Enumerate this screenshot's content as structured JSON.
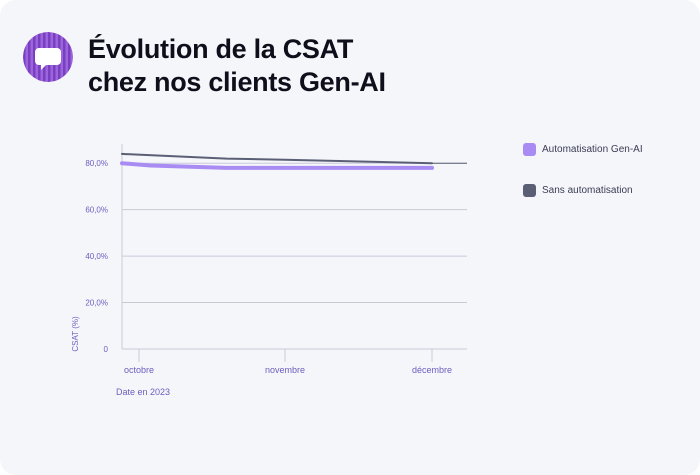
{
  "title_line1": "Évolution de la CSAT",
  "title_line2": "chez nos clients Gen-AI",
  "logo_icon": "chat-bubble-icon",
  "colors": {
    "background": "#f5f6fa",
    "accent": "#a98cf3",
    "dark": "#5a5f75",
    "axis_text": "#6a5fbf",
    "grid": "#c9c9d9"
  },
  "chart_data": {
    "type": "line",
    "title": "Évolution de la CSAT chez nos clients Gen-AI",
    "xlabel": "Date en 2023",
    "ylabel": "CSAT (%)",
    "categories": [
      "octobre",
      "novembre",
      "décembre"
    ],
    "ylim": [
      0,
      90
    ],
    "yticks": [
      0,
      20,
      40,
      60,
      80
    ],
    "ytick_labels": [
      "0",
      "20,0%",
      "40,0%",
      "60,0%",
      "80,0%"
    ],
    "grid": true,
    "legend_position": "right",
    "series": [
      {
        "name": "Automatisation Gen-AI",
        "color": "#a98cf3",
        "x": [
          0,
          0.08,
          0.6,
          1,
          2
        ],
        "values": [
          80,
          79,
          78,
          78,
          78
        ]
      },
      {
        "name": "Sans automatisation",
        "color": "#5a5f75",
        "x": [
          0,
          0.6,
          1,
          2
        ],
        "values": [
          84,
          82,
          81.5,
          80
        ]
      }
    ]
  }
}
